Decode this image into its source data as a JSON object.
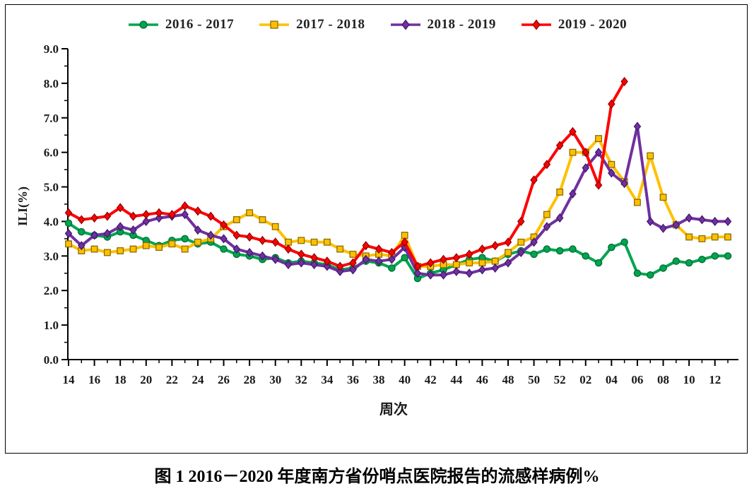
{
  "chart_data": {
    "type": "line",
    "title": "图 1  2016－2020 年度南方省份哨点医院报告的流感样病例%",
    "xlabel": "周次",
    "ylabel": "ILI(%)",
    "ylim": [
      0.0,
      9.0
    ],
    "y_ticks": [
      0.0,
      1.0,
      2.0,
      3.0,
      4.0,
      5.0,
      6.0,
      7.0,
      8.0,
      9.0
    ],
    "grid": false,
    "legend_position": "top-center",
    "x": [
      "14",
      "15",
      "16",
      "17",
      "18",
      "19",
      "20",
      "21",
      "22",
      "23",
      "24",
      "25",
      "26",
      "27",
      "28",
      "29",
      "30",
      "31",
      "32",
      "33",
      "34",
      "35",
      "36",
      "37",
      "38",
      "39",
      "40",
      "41",
      "42",
      "43",
      "44",
      "45",
      "46",
      "47",
      "48",
      "49",
      "50",
      "51",
      "52",
      "01",
      "02",
      "03",
      "04",
      "05",
      "06",
      "07",
      "08",
      "09",
      "10",
      "11",
      "12",
      "13"
    ],
    "x_tick_labels": [
      "14",
      "16",
      "18",
      "20",
      "22",
      "24",
      "26",
      "28",
      "30",
      "32",
      "34",
      "36",
      "38",
      "40",
      "42",
      "44",
      "46",
      "48",
      "50",
      "52",
      "02",
      "04",
      "06",
      "08",
      "10",
      "12"
    ],
    "series": [
      {
        "name": "2016 - 2017",
        "marker": "circle",
        "color": "#00A550",
        "edge_color": "#006B33",
        "values": [
          3.95,
          3.7,
          3.6,
          3.55,
          3.7,
          3.6,
          3.45,
          3.3,
          3.45,
          3.5,
          3.35,
          3.4,
          3.2,
          3.05,
          3.0,
          2.9,
          2.95,
          2.8,
          2.85,
          2.8,
          2.75,
          2.6,
          2.65,
          2.85,
          2.8,
          2.65,
          2.95,
          2.35,
          2.5,
          2.6,
          2.75,
          2.9,
          2.95,
          2.85,
          3.05,
          3.15,
          3.05,
          3.2,
          3.15,
          3.2,
          3.0,
          2.8,
          3.25,
          3.4,
          2.5,
          2.45,
          2.65,
          2.85,
          2.8,
          2.9,
          3.0,
          3.0
        ]
      },
      {
        "name": "2017 - 2018",
        "marker": "square",
        "color": "#FFC000",
        "edge_color": "#8A6D00",
        "values": [
          3.35,
          3.15,
          3.2,
          3.1,
          3.15,
          3.2,
          3.3,
          3.25,
          3.35,
          3.2,
          3.4,
          3.5,
          3.85,
          4.05,
          4.25,
          4.05,
          3.85,
          3.4,
          3.45,
          3.4,
          3.4,
          3.2,
          3.05,
          3.0,
          3.05,
          3.0,
          3.6,
          2.7,
          2.7,
          2.75,
          2.75,
          2.8,
          2.8,
          2.85,
          3.1,
          3.4,
          3.55,
          4.2,
          4.85,
          6.0,
          6.0,
          6.4,
          5.65,
          5.15,
          4.55,
          5.9,
          4.7,
          3.9,
          3.55,
          3.5,
          3.55,
          3.55
        ]
      },
      {
        "name": "2018 - 2019",
        "marker": "diamond",
        "color": "#7030A0",
        "edge_color": "#41176B",
        "values": [
          3.65,
          3.3,
          3.6,
          3.65,
          3.85,
          3.75,
          4.0,
          4.1,
          4.15,
          4.2,
          3.75,
          3.6,
          3.5,
          3.2,
          3.1,
          3.0,
          2.9,
          2.75,
          2.8,
          2.75,
          2.7,
          2.55,
          2.6,
          2.9,
          2.85,
          2.9,
          3.25,
          2.5,
          2.45,
          2.45,
          2.55,
          2.5,
          2.6,
          2.65,
          2.8,
          3.1,
          3.4,
          3.85,
          4.1,
          4.8,
          5.55,
          6.0,
          5.4,
          5.1,
          6.75,
          4.0,
          3.8,
          3.9,
          4.1,
          4.05,
          4.0,
          4.0
        ]
      },
      {
        "name": "2019 - 2020",
        "marker": "diamond",
        "color": "#FF0000",
        "edge_color": "#8B0000",
        "values": [
          4.25,
          4.05,
          4.1,
          4.15,
          4.4,
          4.15,
          4.2,
          4.25,
          4.2,
          4.45,
          4.3,
          4.15,
          3.9,
          3.6,
          3.55,
          3.45,
          3.4,
          3.2,
          3.05,
          2.95,
          2.85,
          2.7,
          2.8,
          3.3,
          3.2,
          3.1,
          3.4,
          2.7,
          2.8,
          2.9,
          2.95,
          3.05,
          3.2,
          3.3,
          3.4,
          4.0,
          5.2,
          5.65,
          6.2,
          6.6,
          6.0,
          5.05,
          7.4,
          8.05
        ]
      }
    ],
    "axis_color": "#000000",
    "tick_label_color": "#1a1a1a"
  }
}
